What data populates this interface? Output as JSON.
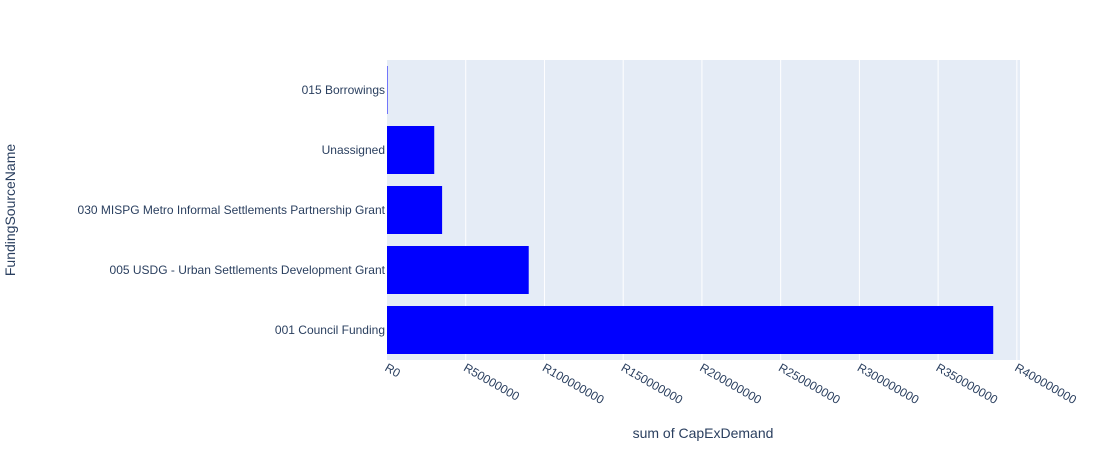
{
  "chart_data": {
    "type": "bar",
    "orientation": "horizontal",
    "title": "",
    "xlabel": "sum of CapExDemand",
    "ylabel": "FundingSourceName",
    "categories": [
      "015 Borrowings",
      "Unassigned",
      "030 MISPG Metro Informal Settlements Partnership Grant",
      "005 USDG - Urban Settlements Development Grant",
      "001 Council Funding"
    ],
    "values": [
      300000,
      30000000,
      35000000,
      90000000,
      385000000
    ],
    "xlim": [
      0,
      402000000
    ],
    "x_ticks": [
      0,
      50000000,
      100000000,
      150000000,
      200000000,
      250000000,
      300000000,
      350000000,
      400000000
    ],
    "x_tick_labels": [
      "R0",
      "R50000000",
      "R100000000",
      "R150000000",
      "R200000000",
      "R250000000",
      "R300000000",
      "R350000000",
      "R400000000"
    ],
    "bar_color": "#0000ff",
    "plot_background": "#e5ecf6",
    "grid_color": "#ffffff",
    "grid": true,
    "legend": "none"
  }
}
